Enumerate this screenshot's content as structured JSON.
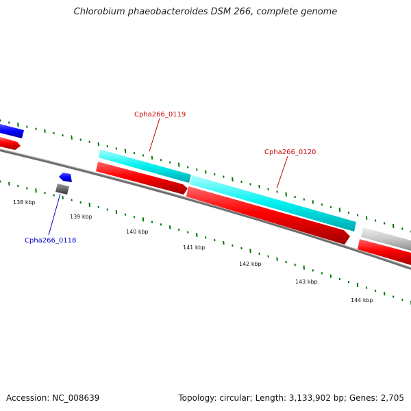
{
  "title": "Chlorobium phaeobacteroides DSM 266, complete genome",
  "footer": {
    "accession": "Accession: NC_008639",
    "summary": "Topology: circular; Length: 3,133,902 bp; Genes: 2,705"
  },
  "ruler": {
    "ticks": [
      "138 kbp",
      "139 kbp",
      "140 kbp",
      "141 kbp",
      "142 kbp",
      "143 kbp",
      "144 kbp"
    ]
  },
  "genes": [
    {
      "label": "Cpha266_0119",
      "color": "#cc0000"
    },
    {
      "label": "Cpha266_0120",
      "color": "#cc0000"
    },
    {
      "label": "Cpha266_0118",
      "color": "#0000cc"
    }
  ],
  "colors": {
    "cds_red": "#ff0000",
    "feature_cyan": "#00ffff",
    "feature_blue": "#0000ff",
    "feature_gray": "#c0c0c0",
    "gc_tick_green": "#007700",
    "backbone": "#777777"
  }
}
